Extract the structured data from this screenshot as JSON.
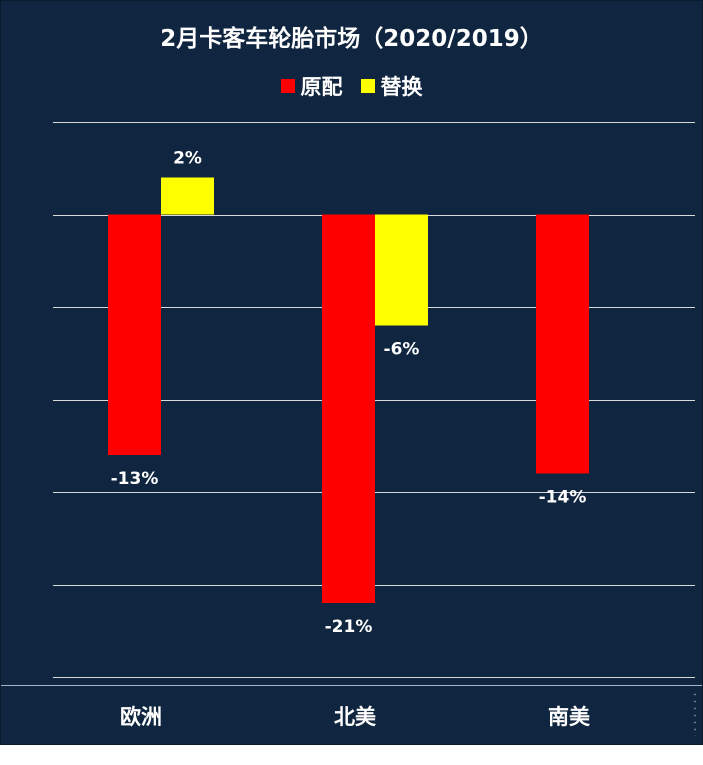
{
  "chart_data": {
    "type": "bar",
    "title": "2月卡客车轮胎市场（2020/2019）",
    "categories": [
      "欧洲",
      "北美",
      "南美"
    ],
    "series": [
      {
        "name": "原配",
        "color": "#ff0000",
        "values": [
          -13,
          -21,
          -14
        ],
        "labels": [
          "-13%",
          "-21%",
          "-14%"
        ]
      },
      {
        "name": "替换",
        "color": "#ffff00",
        "values": [
          2,
          -6,
          null
        ],
        "labels": [
          "2%",
          "-6%",
          null
        ]
      }
    ],
    "ylim": [
      -25,
      5
    ],
    "grid": true,
    "legend_position": "top"
  },
  "colors": {
    "background": "#10253f",
    "text": "#ffffff",
    "gridline": "#d9d9d9"
  }
}
